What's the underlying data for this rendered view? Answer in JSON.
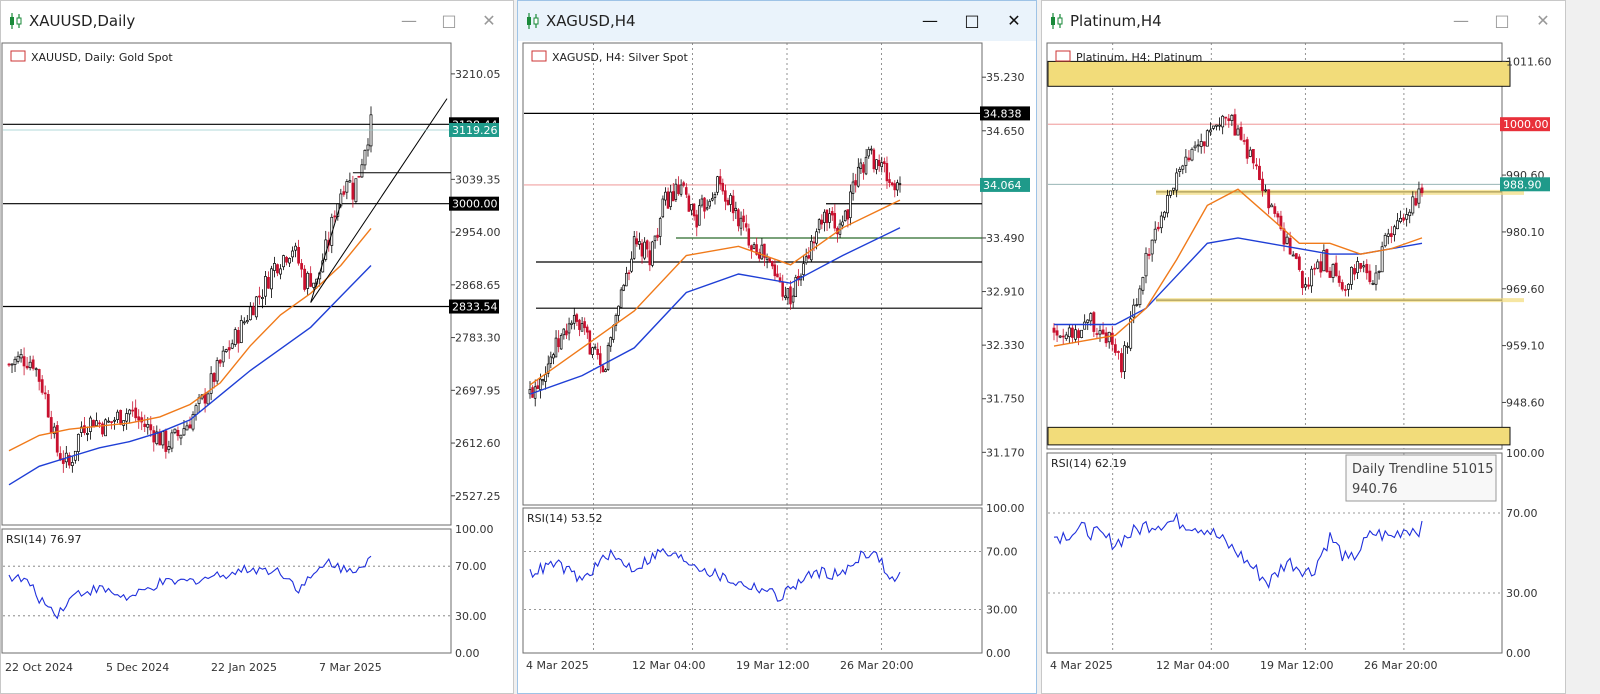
{
  "windows": [
    {
      "title": "XAUUSD,Daily",
      "active": false,
      "icon": "candlestick-chart-icon",
      "buttons": {
        "minimize": "—",
        "maximize": "□",
        "close": "✕"
      },
      "chart_label": "XAUUSD, Daily:  Gold Spot",
      "price_ticks": [
        "3210.05",
        "3039.35",
        "2954.00",
        "2868.65",
        "2783.30",
        "2697.95",
        "2612.60",
        "2527.25"
      ],
      "levels": [
        "3128.44",
        "3119.26",
        "3000.00",
        "2833.54"
      ],
      "date_ticks": [
        "22 Oct 2024",
        "5 Dec 2024",
        "22 Jan 2025",
        "7 Mar 2025"
      ],
      "rsi_label": "RSI(14) 76.97",
      "rsi_ticks": [
        "100.00",
        "70.00",
        "30.00",
        "0.00"
      ]
    },
    {
      "title": "XAGUSD,H4",
      "active": true,
      "icon": "candlestick-chart-icon",
      "buttons": {
        "minimize": "—",
        "maximize": "□",
        "close": "✕"
      },
      "chart_label": "XAGUSD, H4:  Silver Spot",
      "price_ticks": [
        "35.230",
        "34.650",
        "33.490",
        "32.910",
        "32.330",
        "31.750",
        "31.170"
      ],
      "levels": [
        "34.838",
        "34.064"
      ],
      "date_ticks": [
        "4 Mar 2025",
        "12 Mar 04:00",
        "19 Mar 12:00",
        "26 Mar 20:00"
      ],
      "rsi_label": "RSI(14) 53.52",
      "rsi_ticks": [
        "100.00",
        "70.00",
        "30.00",
        "0.00"
      ]
    },
    {
      "title": "Platinum,H4",
      "active": false,
      "icon": "candlestick-chart-icon",
      "buttons": {
        "minimize": "—",
        "maximize": "□",
        "close": "✕"
      },
      "chart_label": "Platinum, H4:  Platinum",
      "price_ticks": [
        "1011.60",
        "990.60",
        "980.10",
        "969.60",
        "959.10",
        "948.60"
      ],
      "levels": [
        "1000.00",
        "988.90"
      ],
      "date_ticks": [
        "4 Mar 2025",
        "12 Mar 04:00",
        "19 Mar 12:00",
        "26 Mar 20:00"
      ],
      "rsi_label": "RSI(14) 62.19",
      "rsi_ticks": [
        "100.00",
        "70.00",
        "30.00",
        "0.00"
      ],
      "tooltip": {
        "line1": "Daily Trendline 51015",
        "line2": "940.76"
      }
    }
  ],
  "colors": {
    "bull": "#000000",
    "bear": "#c8102e",
    "ma_fast": "#f07a1a",
    "ma_slow": "#1f3fd6",
    "rsi": "#1f2fdc",
    "level_black": "#000000",
    "level_red_bg": "#e8303a",
    "level_teal_bg": "#1f9a8a",
    "zone": "#f2dc7a"
  },
  "chart_data": [
    {
      "type": "candlestick",
      "symbol": "XAUUSD",
      "timeframe": "Daily",
      "title": "XAUUSD, Daily:  Gold Spot",
      "ylim": [
        2480,
        3260
      ],
      "horizontal_levels": [
        3128.44,
        3000.0,
        2833.54
      ],
      "current_price": 3119.26,
      "close_path": [
        [
          0,
          2740
        ],
        [
          4,
          2750
        ],
        [
          8,
          2745
        ],
        [
          12,
          2690
        ],
        [
          16,
          2600
        ],
        [
          20,
          2575
        ],
        [
          24,
          2640
        ],
        [
          28,
          2650
        ],
        [
          32,
          2640
        ],
        [
          36,
          2655
        ],
        [
          40,
          2665
        ],
        [
          44,
          2645
        ],
        [
          48,
          2630
        ],
        [
          52,
          2610
        ],
        [
          56,
          2625
        ],
        [
          60,
          2650
        ],
        [
          64,
          2680
        ],
        [
          68,
          2720
        ],
        [
          72,
          2760
        ],
        [
          76,
          2790
        ],
        [
          80,
          2830
        ],
        [
          84,
          2860
        ],
        [
          88,
          2900
        ],
        [
          92,
          2920
        ],
        [
          94,
          2930
        ],
        [
          96,
          2905
        ],
        [
          98,
          2875
        ],
        [
          100,
          2880
        ],
        [
          102,
          2870
        ],
        [
          104,
          2910
        ],
        [
          106,
          2940
        ],
        [
          108,
          2990
        ],
        [
          110,
          3020
        ],
        [
          112,
          3045
        ],
        [
          114,
          3020
        ],
        [
          116,
          3050
        ],
        [
          118,
          3095
        ],
        [
          120,
          3128
        ]
      ],
      "ma_fast": [
        [
          0,
          2600
        ],
        [
          10,
          2625
        ],
        [
          20,
          2635
        ],
        [
          30,
          2640
        ],
        [
          40,
          2645
        ],
        [
          50,
          2655
        ],
        [
          60,
          2675
        ],
        [
          70,
          2710
        ],
        [
          80,
          2770
        ],
        [
          90,
          2820
        ],
        [
          100,
          2855
        ],
        [
          110,
          2900
        ],
        [
          120,
          2960
        ]
      ],
      "ma_slow": [
        [
          0,
          2545
        ],
        [
          10,
          2575
        ],
        [
          20,
          2590
        ],
        [
          30,
          2605
        ],
        [
          40,
          2615
        ],
        [
          50,
          2630
        ],
        [
          60,
          2650
        ],
        [
          70,
          2690
        ],
        [
          80,
          2730
        ],
        [
          90,
          2765
        ],
        [
          100,
          2800
        ],
        [
          110,
          2850
        ],
        [
          120,
          2900
        ]
      ],
      "rsi": [
        [
          0,
          62
        ],
        [
          6,
          58
        ],
        [
          10,
          44
        ],
        [
          16,
          32
        ],
        [
          22,
          48
        ],
        [
          30,
          52
        ],
        [
          40,
          44
        ],
        [
          50,
          56
        ],
        [
          60,
          58
        ],
        [
          70,
          63
        ],
        [
          80,
          68
        ],
        [
          90,
          66
        ],
        [
          96,
          52
        ],
        [
          100,
          60
        ],
        [
          106,
          74
        ],
        [
          112,
          66
        ],
        [
          116,
          70
        ],
        [
          120,
          76.97
        ]
      ]
    },
    {
      "type": "candlestick",
      "symbol": "XAGUSD",
      "timeframe": "H4",
      "title": "XAGUSD, H4:  Silver Spot",
      "ylim": [
        30.6,
        35.6
      ],
      "horizontal_levels": [
        34.838,
        34.064,
        33.86,
        33.49,
        33.23,
        32.73
      ],
      "current_price": 34.064,
      "close_path": [
        [
          0,
          31.8
        ],
        [
          8,
          32.2
        ],
        [
          16,
          32.6
        ],
        [
          22,
          32.4
        ],
        [
          28,
          32.0
        ],
        [
          34,
          32.8
        ],
        [
          40,
          33.4
        ],
        [
          46,
          33.3
        ],
        [
          52,
          33.9
        ],
        [
          58,
          34.0
        ],
        [
          64,
          33.7
        ],
        [
          68,
          33.9
        ],
        [
          72,
          34.1
        ],
        [
          78,
          33.8
        ],
        [
          84,
          33.5
        ],
        [
          90,
          33.3
        ],
        [
          96,
          33.0
        ],
        [
          100,
          32.85
        ],
        [
          104,
          33.1
        ],
        [
          108,
          33.4
        ],
        [
          112,
          33.7
        ],
        [
          118,
          33.6
        ],
        [
          122,
          33.8
        ],
        [
          126,
          34.2
        ],
        [
          130,
          34.4
        ],
        [
          134,
          34.3
        ],
        [
          138,
          34.1
        ],
        [
          142,
          34.0
        ]
      ],
      "ma_fast": [
        [
          0,
          31.9
        ],
        [
          20,
          32.3
        ],
        [
          40,
          32.7
        ],
        [
          60,
          33.3
        ],
        [
          80,
          33.4
        ],
        [
          100,
          33.2
        ],
        [
          120,
          33.6
        ],
        [
          142,
          33.9
        ]
      ],
      "ma_slow": [
        [
          0,
          31.8
        ],
        [
          20,
          32.0
        ],
        [
          40,
          32.3
        ],
        [
          60,
          32.9
        ],
        [
          80,
          33.1
        ],
        [
          100,
          33.0
        ],
        [
          120,
          33.3
        ],
        [
          142,
          33.6
        ]
      ],
      "rsi": [
        [
          0,
          55
        ],
        [
          10,
          62
        ],
        [
          20,
          50
        ],
        [
          30,
          68
        ],
        [
          40,
          58
        ],
        [
          50,
          70
        ],
        [
          60,
          64
        ],
        [
          70,
          55
        ],
        [
          80,
          48
        ],
        [
          90,
          44
        ],
        [
          96,
          38
        ],
        [
          100,
          45
        ],
        [
          110,
          56
        ],
        [
          120,
          54
        ],
        [
          128,
          70
        ],
        [
          134,
          66
        ],
        [
          138,
          50
        ],
        [
          142,
          53.52
        ]
      ]
    },
    {
      "type": "candlestick",
      "symbol": "Platinum",
      "timeframe": "H4",
      "title": "Platinum, H4:  Platinum",
      "ylim": [
        940,
        1015
      ],
      "horizontal_levels": [
        1000.0,
        988.9,
        987.5,
        967.5
      ],
      "current_price": 988.9,
      "zones": [
        [
          1011.6,
          1007.0
        ],
        [
          944.0,
          940.76
        ]
      ],
      "close_path": [
        [
          0,
          962
        ],
        [
          6,
          961
        ],
        [
          12,
          964
        ],
        [
          18,
          960
        ],
        [
          22,
          955
        ],
        [
          26,
          965
        ],
        [
          30,
          975
        ],
        [
          34,
          982
        ],
        [
          40,
          990
        ],
        [
          46,
          995
        ],
        [
          52,
          1000
        ],
        [
          56,
          1002
        ],
        [
          60,
          998
        ],
        [
          64,
          994
        ],
        [
          70,
          985
        ],
        [
          76,
          978
        ],
        [
          82,
          970
        ],
        [
          88,
          975
        ],
        [
          94,
          970
        ],
        [
          100,
          975
        ],
        [
          104,
          969
        ],
        [
          108,
          978
        ],
        [
          112,
          982
        ],
        [
          116,
          984
        ],
        [
          120,
          988.9
        ]
      ],
      "ma_fast": [
        [
          0,
          959
        ],
        [
          10,
          960
        ],
        [
          20,
          961
        ],
        [
          30,
          966
        ],
        [
          40,
          975
        ],
        [
          50,
          985
        ],
        [
          60,
          988
        ],
        [
          70,
          983
        ],
        [
          80,
          978
        ],
        [
          90,
          978
        ],
        [
          100,
          976
        ],
        [
          110,
          977
        ],
        [
          120,
          979
        ]
      ],
      "ma_slow": [
        [
          0,
          963
        ],
        [
          10,
          963
        ],
        [
          20,
          963
        ],
        [
          30,
          966
        ],
        [
          40,
          972
        ],
        [
          50,
          978
        ],
        [
          60,
          979
        ],
        [
          70,
          978
        ],
        [
          80,
          977
        ],
        [
          90,
          976
        ],
        [
          100,
          976
        ],
        [
          110,
          977
        ],
        [
          120,
          978
        ]
      ],
      "rsi": [
        [
          0,
          58
        ],
        [
          10,
          62
        ],
        [
          20,
          55
        ],
        [
          30,
          64
        ],
        [
          40,
          66
        ],
        [
          50,
          62
        ],
        [
          60,
          50
        ],
        [
          70,
          35
        ],
        [
          76,
          46
        ],
        [
          84,
          40
        ],
        [
          90,
          58
        ],
        [
          96,
          45
        ],
        [
          104,
          60
        ],
        [
          110,
          58
        ],
        [
          114,
          62
        ],
        [
          120,
          62.19
        ]
      ]
    }
  ]
}
